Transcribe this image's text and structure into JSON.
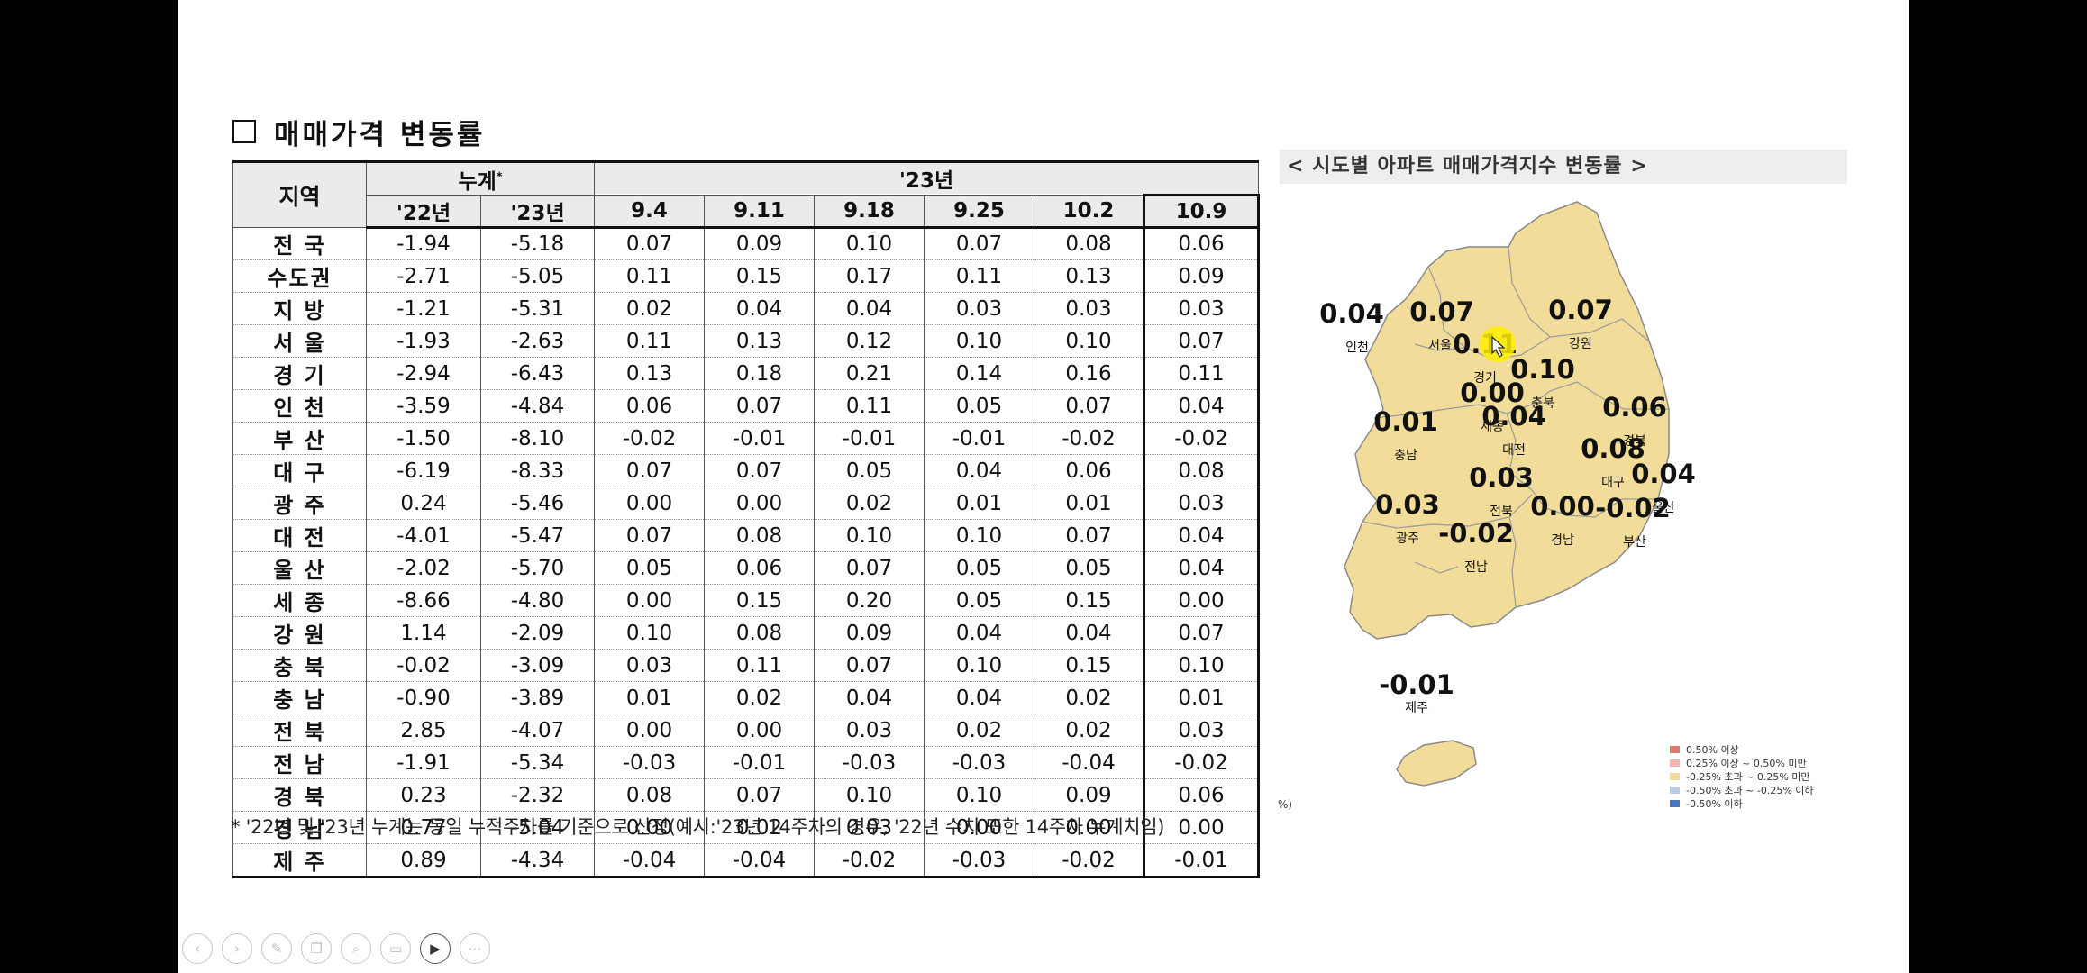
{
  "section_title": "매매가격 변동률",
  "table": {
    "region_header": "지역",
    "cumulative_header": "누계",
    "cumulative_mark": "*",
    "year_header": "'23년",
    "sub_headers": [
      "'22년",
      "'23년",
      "9.4",
      "9.11",
      "9.18",
      "9.25",
      "10.2",
      "10.9"
    ],
    "rows": [
      {
        "region": "전 국",
        "values": [
          "-1.94",
          "-5.18",
          "0.07",
          "0.09",
          "0.10",
          "0.07",
          "0.08",
          "0.06"
        ]
      },
      {
        "region": "수도권",
        "values": [
          "-2.71",
          "-5.05",
          "0.11",
          "0.15",
          "0.17",
          "0.11",
          "0.13",
          "0.09"
        ]
      },
      {
        "region": "지 방",
        "values": [
          "-1.21",
          "-5.31",
          "0.02",
          "0.04",
          "0.04",
          "0.03",
          "0.03",
          "0.03"
        ]
      },
      {
        "region": "서 울",
        "values": [
          "-1.93",
          "-2.63",
          "0.11",
          "0.13",
          "0.12",
          "0.10",
          "0.10",
          "0.07"
        ]
      },
      {
        "region": "경 기",
        "values": [
          "-2.94",
          "-6.43",
          "0.13",
          "0.18",
          "0.21",
          "0.14",
          "0.16",
          "0.11"
        ]
      },
      {
        "region": "인 천",
        "values": [
          "-3.59",
          "-4.84",
          "0.06",
          "0.07",
          "0.11",
          "0.05",
          "0.07",
          "0.04"
        ]
      },
      {
        "region": "부 산",
        "values": [
          "-1.50",
          "-8.10",
          "-0.02",
          "-0.01",
          "-0.01",
          "-0.01",
          "-0.02",
          "-0.02"
        ]
      },
      {
        "region": "대 구",
        "values": [
          "-6.19",
          "-8.33",
          "0.07",
          "0.07",
          "0.05",
          "0.04",
          "0.06",
          "0.08"
        ]
      },
      {
        "region": "광 주",
        "values": [
          "0.24",
          "-5.46",
          "0.00",
          "0.00",
          "0.02",
          "0.01",
          "0.01",
          "0.03"
        ]
      },
      {
        "region": "대 전",
        "values": [
          "-4.01",
          "-5.47",
          "0.07",
          "0.08",
          "0.10",
          "0.10",
          "0.07",
          "0.04"
        ]
      },
      {
        "region": "울 산",
        "values": [
          "-2.02",
          "-5.70",
          "0.05",
          "0.06",
          "0.07",
          "0.05",
          "0.05",
          "0.04"
        ]
      },
      {
        "region": "세 종",
        "values": [
          "-8.66",
          "-4.80",
          "0.00",
          "0.15",
          "0.20",
          "0.05",
          "0.15",
          "0.00"
        ]
      },
      {
        "region": "강 원",
        "values": [
          "1.14",
          "-2.09",
          "0.10",
          "0.08",
          "0.09",
          "0.04",
          "0.04",
          "0.07"
        ]
      },
      {
        "region": "충 북",
        "values": [
          "-0.02",
          "-3.09",
          "0.03",
          "0.11",
          "0.07",
          "0.10",
          "0.15",
          "0.10"
        ]
      },
      {
        "region": "충 남",
        "values": [
          "-0.90",
          "-3.89",
          "0.01",
          "0.02",
          "0.04",
          "0.04",
          "0.02",
          "0.01"
        ]
      },
      {
        "region": "전 북",
        "values": [
          "2.85",
          "-4.07",
          "0.00",
          "0.00",
          "0.03",
          "0.02",
          "0.02",
          "0.03"
        ]
      },
      {
        "region": "전 남",
        "values": [
          "-1.91",
          "-5.34",
          "-0.03",
          "-0.01",
          "-0.03",
          "-0.03",
          "-0.04",
          "-0.02"
        ]
      },
      {
        "region": "경 북",
        "values": [
          "0.23",
          "-2.32",
          "0.08",
          "0.07",
          "0.10",
          "0.10",
          "0.09",
          "0.06"
        ]
      },
      {
        "region": "경 남",
        "values": [
          "0.77",
          "-5.04",
          "0.00",
          "0.02",
          "0.03",
          "0.00",
          "0.00",
          "0.00"
        ]
      },
      {
        "region": "제 주",
        "values": [
          "0.89",
          "-4.34",
          "-0.04",
          "-0.04",
          "-0.02",
          "-0.03",
          "-0.02",
          "-0.01"
        ]
      }
    ]
  },
  "footnote": "* '22년 및 '23년 누계는 동일 누적주차를 기준으로 산정(예시:'23년 14주차의 경우, '22년 수치 또한 14주차 누계치임)",
  "map": {
    "title": "< 시도별 아파트 매매가격지수 변동률 >",
    "fill_color": "#f2dc9a",
    "regions": [
      {
        "name": "인천",
        "value": "0.04"
      },
      {
        "name": "서울",
        "value": "0.07"
      },
      {
        "name": "경기",
        "value": "0.11"
      },
      {
        "name": "강원",
        "value": "0.07"
      },
      {
        "name": "충북",
        "value": "0.10"
      },
      {
        "name": "세종",
        "value": "0.00"
      },
      {
        "name": "충남",
        "value": "0.01"
      },
      {
        "name": "대전",
        "value": "0.04"
      },
      {
        "name": "경북",
        "value": "0.06"
      },
      {
        "name": "대구",
        "value": "0.08"
      },
      {
        "name": "전북",
        "value": "0.03"
      },
      {
        "name": "울산",
        "value": "0.04"
      },
      {
        "name": "광주",
        "value": "0.03"
      },
      {
        "name": "경남",
        "value": "0.00"
      },
      {
        "name": "부산",
        "value": "-0.02"
      },
      {
        "name": "전남",
        "value": "-0.02"
      },
      {
        "name": "제주",
        "value": "-0.01"
      }
    ],
    "legend": [
      {
        "label": "0.50% 이상",
        "color": "#e0796c"
      },
      {
        "label": "0.25% 이상 ~ 0.50% 미만",
        "color": "#f2b8b0"
      },
      {
        "label": "-0.25% 초과 ~ 0.25% 미만",
        "color": "#f2dc9a"
      },
      {
        "label": "-0.50% 초과 ~ -0.25% 이하",
        "color": "#b8cbe8"
      },
      {
        "label": "-0.50% 이하",
        "color": "#4e74c4"
      }
    ],
    "side_marker": "%)"
  },
  "toolbar": {
    "buttons": [
      {
        "name": "prev-slide-icon",
        "glyph": "‹"
      },
      {
        "name": "next-slide-icon",
        "glyph": "›"
      },
      {
        "name": "pen-icon",
        "glyph": "✎"
      },
      {
        "name": "slides-grid-icon",
        "glyph": "❐"
      },
      {
        "name": "zoom-icon",
        "glyph": "⌕"
      },
      {
        "name": "subtitles-icon",
        "glyph": "▭"
      },
      {
        "name": "camera-icon",
        "glyph": "▶"
      },
      {
        "name": "more-options-icon",
        "glyph": "⋯"
      }
    ]
  }
}
